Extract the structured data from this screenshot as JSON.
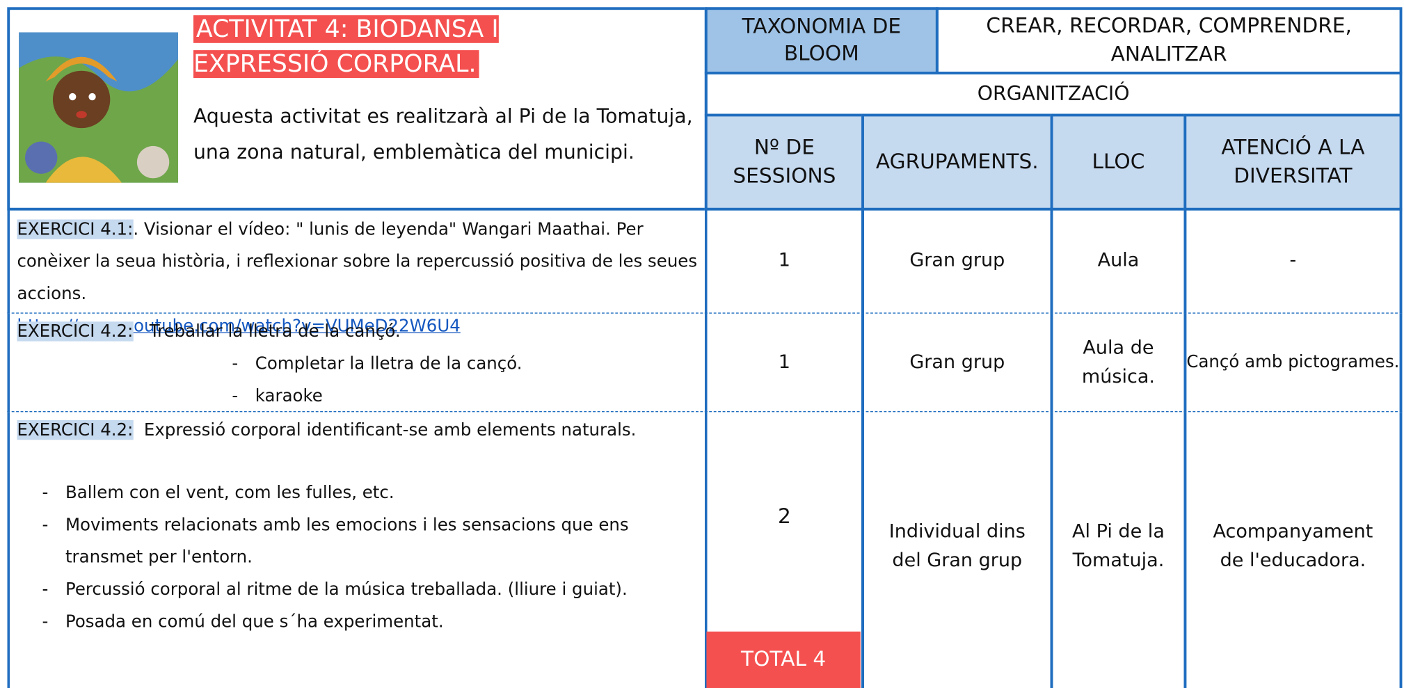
{
  "activity": {
    "title": "ACTIVITAT 4: BIODANSA I EXPRESSIÓ CORPORAL.",
    "description": "Aquesta activitat es realitzarà al Pi de la Tomatuja, una zona natural, emblemàtica del municipi."
  },
  "bloom": {
    "label": "TAXONOMIA DE BLOOM",
    "value": "CREAR, RECORDAR, COMPRENDRE, ANALITZAR"
  },
  "organization": {
    "title": "ORGANITZACIÓ",
    "headers": [
      "Nº DE SESSIONS",
      "AGRUPAMENTS.",
      "LLOC",
      "ATENCIÓ A LA DIVERSITAT"
    ]
  },
  "exercises": [
    {
      "label": "EXERCICI 4.1:",
      "text": ". Visionar el vídeo: \" lunis de leyenda\" Wangari Maathai. Per conèixer la seua història, i reflexionar sobre la repercussió  positiva de les seues accions.",
      "link": "https://www.youtube.com/watch?v=VUMeD22W6U4",
      "sessions": 1,
      "grouping": "Gran grup",
      "place": "Aula",
      "diversity": "-"
    },
    {
      "label": "EXERCICI 4.2:",
      "text": "Treballar la lletra de la cançó.",
      "items": [
        "Completar la lletra de la cançó.",
        "karaoke"
      ],
      "sessions": 1,
      "grouping": "Gran grup",
      "place": "Aula de música.",
      "diversity": "Cançó amb pictogrames."
    },
    {
      "label": "EXERCICI 4.2:",
      "text": "Expressió corporal identificant-se amb elements naturals.",
      "items": [
        "Ballem con el vent, com les fulles, etc.",
        "Moviments relacionats amb les emocions i les sensacions que ens transmet per l'entorn.",
        "Percussió corporal al ritme de la música treballada. (lliure i guiat).",
        "Posada en comú del que s´ha experimentat."
      ],
      "sessions": 2,
      "grouping": "Individual dins del Gran grup",
      "place": "Al Pi de la Tomatuja.",
      "diversity": "Acompanyament de l'educadora."
    }
  ],
  "total": "TOTAL 4"
}
